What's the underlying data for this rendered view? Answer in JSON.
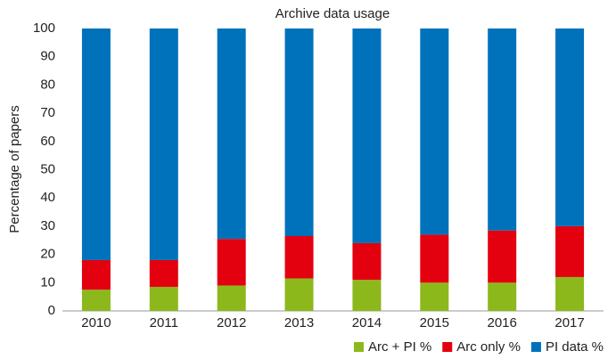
{
  "chart_data": {
    "type": "stacked_bar",
    "title": "Archive data usage",
    "y_label": "Percentage of papers",
    "categories": [
      "2010",
      "2011",
      "2012",
      "2013",
      "2014",
      "2015",
      "2016",
      "2017"
    ],
    "series": [
      {
        "name": "Arc + PI %",
        "color": "#8cb81c",
        "values": [
          7.5,
          8.5,
          9,
          11.5,
          11,
          10,
          10,
          12
        ]
      },
      {
        "name": "Arc only %",
        "color": "#e3000f",
        "values": [
          10.5,
          9.5,
          16.5,
          15,
          13,
          17,
          18.5,
          18
        ]
      },
      {
        "name": "PI data %",
        "color": "#0072bb",
        "values": [
          82,
          82,
          74.5,
          73.5,
          76,
          73,
          71.5,
          70
        ]
      }
    ],
    "ylim": [
      0,
      100
    ],
    "yticks": [
      0,
      10,
      20,
      30,
      40,
      50,
      60,
      70,
      80,
      90,
      100
    ],
    "grid": false,
    "legend": "bottom-right"
  }
}
